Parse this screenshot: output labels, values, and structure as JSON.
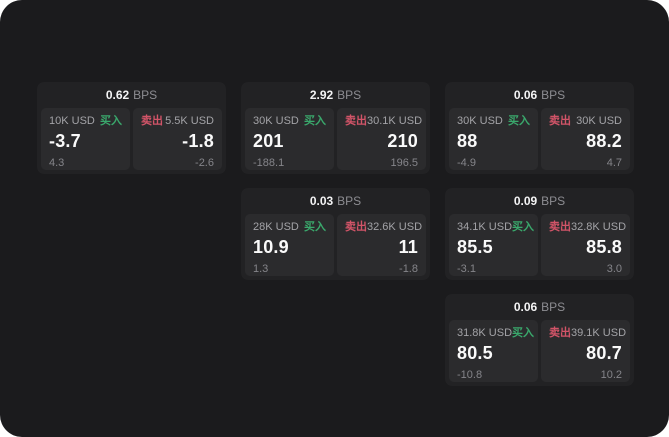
{
  "labels": {
    "bps": "BPS",
    "buy": "买入",
    "sell": "卖出"
  },
  "colors": {
    "canvas": "#ffffff",
    "panel_bg": "#1b1b1d",
    "card_bg": "#222224",
    "tile_bg": "#2b2b2d",
    "text_primary": "#fafafa",
    "text_secondary": "#a3a3a7",
    "text_muted": "#85858a",
    "buy_green": "#3aa86c",
    "sell_red": "#d25468"
  },
  "cards": [
    {
      "bps": "0.62",
      "buy": {
        "notional": "10K USD",
        "price": "-3.7",
        "delta": "4.3"
      },
      "sell": {
        "notional": "5.5K USD",
        "price": "-1.8",
        "delta": "-2.6"
      }
    },
    {
      "bps": "2.92",
      "buy": {
        "notional": "30K USD",
        "price": "201",
        "delta": "-188.1"
      },
      "sell": {
        "notional": "30.1K USD",
        "price": "210",
        "delta": "196.5"
      }
    },
    {
      "bps": "0.06",
      "buy": {
        "notional": "30K USD",
        "price": "88",
        "delta": "-4.9"
      },
      "sell": {
        "notional": "30K USD",
        "price": "88.2",
        "delta": "4.7"
      }
    },
    {
      "bps": "0.03",
      "buy": {
        "notional": "28K USD",
        "price": "10.9",
        "delta": "1.3"
      },
      "sell": {
        "notional": "32.6K USD",
        "price": "11",
        "delta": "-1.8"
      }
    },
    {
      "bps": "0.09",
      "buy": {
        "notional": "34.1K USD",
        "price": "85.5",
        "delta": "-3.1"
      },
      "sell": {
        "notional": "32.8K USD",
        "price": "85.8",
        "delta": "3.0"
      }
    },
    {
      "bps": "0.06",
      "buy": {
        "notional": "31.8K USD",
        "price": "80.5",
        "delta": "-10.8"
      },
      "sell": {
        "notional": "39.1K USD",
        "price": "80.7",
        "delta": "10.2"
      }
    }
  ]
}
